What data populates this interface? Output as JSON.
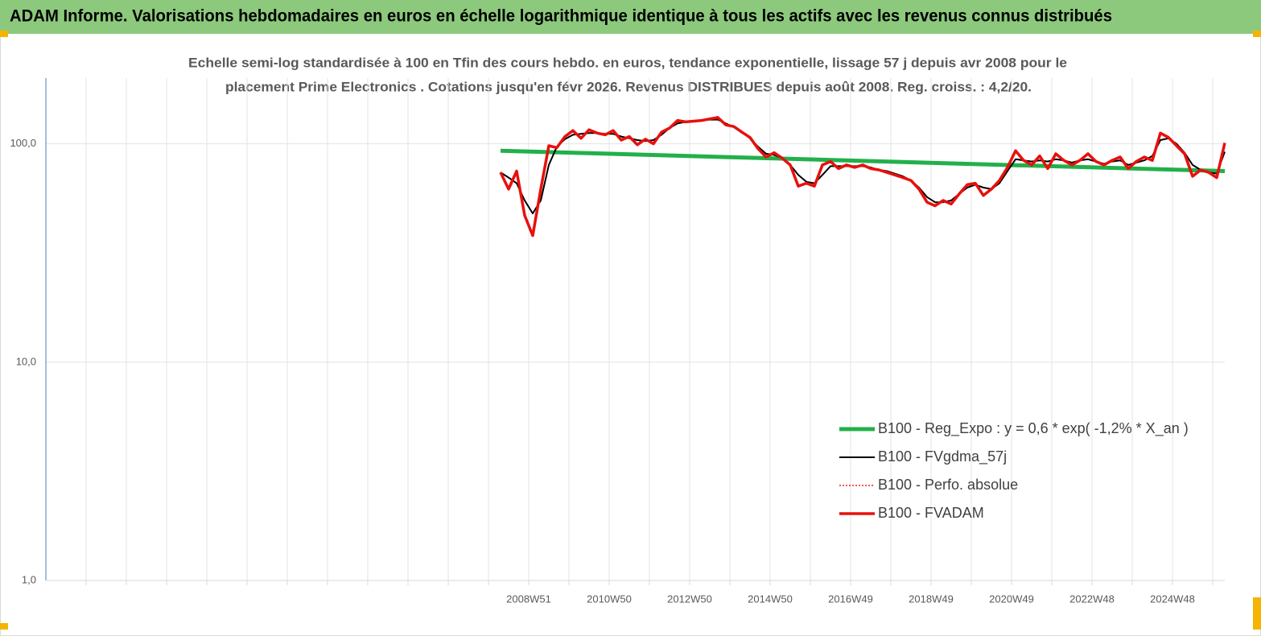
{
  "chart_data": {
    "type": "line",
    "title": "ADAM Informe. Valorisations hebdomadaires en euros en échelle logarithmique identique à tous les actifs avec les revenus connus distribués",
    "subtitle": [
      "Echelle semi-log standardisée à 100 en Tfin des cours hebdo. en euros, tendance exponentielle, lissage 57 j depuis avr 2008 pour le",
      "placement Prime Electronics . Cotations jusqu'en févr 2026. Revenus DISTRIBUES depuis août 2008. Reg. croiss. : 4,2/20."
    ],
    "log_scale": true,
    "grid": true,
    "legend": "lower right",
    "xlim": [
      1996.97,
      2026.27
    ],
    "xticks": [
      {
        "value": 1997.97,
        "label": null
      },
      {
        "value": 1998.97,
        "label": null
      },
      {
        "value": 1999.97,
        "label": null
      },
      {
        "value": 2000.97,
        "label": null
      },
      {
        "value": 2001.97,
        "label": null
      },
      {
        "value": 2002.97,
        "label": null
      },
      {
        "value": 2003.97,
        "label": null
      },
      {
        "value": 2004.97,
        "label": null
      },
      {
        "value": 2005.97,
        "label": null
      },
      {
        "value": 2006.97,
        "label": null
      },
      {
        "value": 2007.97,
        "label": null
      },
      {
        "value": 2008.97,
        "label": "2008W51"
      },
      {
        "value": 2009.97,
        "label": null
      },
      {
        "value": 2010.97,
        "label": "2010W50"
      },
      {
        "value": 2011.97,
        "label": null
      },
      {
        "value": 2012.97,
        "label": "2012W50"
      },
      {
        "value": 2013.97,
        "label": null
      },
      {
        "value": 2014.97,
        "label": "2014W50"
      },
      {
        "value": 2015.97,
        "label": null
      },
      {
        "value": 2016.97,
        "label": "2016W49"
      },
      {
        "value": 2017.97,
        "label": null
      },
      {
        "value": 2018.97,
        "label": "2018W49"
      },
      {
        "value": 2019.97,
        "label": null
      },
      {
        "value": 2020.97,
        "label": "2020W49"
      },
      {
        "value": 2021.97,
        "label": null
      },
      {
        "value": 2022.97,
        "label": "2022W48"
      },
      {
        "value": 2023.97,
        "label": null
      },
      {
        "value": 2024.97,
        "label": "2024W48"
      },
      {
        "value": 2025.97,
        "label": null
      }
    ],
    "ylim": [
      1,
      200
    ],
    "yticks": [
      {
        "value": 1,
        "label": "1,0"
      },
      {
        "value": 10,
        "label": "10,0"
      },
      {
        "value": 100,
        "label": "100,0"
      }
    ],
    "x": [
      2008.27,
      2008.47,
      2008.67,
      2008.87,
      2009.07,
      2009.27,
      2009.47,
      2009.67,
      2009.87,
      2010.07,
      2010.27,
      2010.47,
      2010.67,
      2010.87,
      2011.07,
      2011.27,
      2011.47,
      2011.67,
      2011.87,
      2012.07,
      2012.27,
      2012.47,
      2012.67,
      2012.87,
      2013.07,
      2013.27,
      2013.47,
      2013.67,
      2013.87,
      2014.07,
      2014.27,
      2014.47,
      2014.67,
      2014.87,
      2015.07,
      2015.27,
      2015.47,
      2015.67,
      2015.87,
      2016.07,
      2016.27,
      2016.47,
      2016.67,
      2016.87,
      2017.07,
      2017.27,
      2017.47,
      2017.67,
      2017.87,
      2018.07,
      2018.27,
      2018.47,
      2018.67,
      2018.87,
      2019.07,
      2019.27,
      2019.47,
      2019.67,
      2019.87,
      2020.07,
      2020.27,
      2020.47,
      2020.67,
      2020.87,
      2021.07,
      2021.27,
      2021.47,
      2021.67,
      2021.87,
      2022.07,
      2022.27,
      2022.47,
      2022.67,
      2022.87,
      2023.07,
      2023.27,
      2023.47,
      2023.67,
      2023.87,
      2024.07,
      2024.27,
      2024.47,
      2024.67,
      2024.87,
      2025.07,
      2025.27,
      2025.47,
      2025.67,
      2025.87,
      2026.07,
      2026.27
    ],
    "series": [
      {
        "name": "B100 - Reg_Expo : y = 0,6 * exp( -1,2% *  X_an )",
        "color": "#22b04a",
        "width": 5,
        "dash": null,
        "x": [
          2008.27,
          2026.27
        ],
        "values": [
          93,
          75
        ]
      },
      {
        "name": "B100 - FVgdma_57j",
        "color": "#000000",
        "width": 2,
        "dash": null,
        "values": [
          74,
          70,
          66,
          55,
          48,
          55,
          80,
          97,
          105,
          110,
          111,
          112,
          112,
          111,
          111,
          108,
          106,
          104,
          103,
          104,
          110,
          118,
          124,
          126,
          127,
          128,
          129,
          129,
          124,
          119,
          113,
          106,
          97,
          90,
          89,
          86,
          80,
          72,
          67,
          66,
          72,
          79,
          79,
          79,
          79,
          79,
          78,
          76,
          75,
          73,
          71,
          68,
          63,
          57,
          54,
          54,
          55,
          59,
          63,
          65,
          63,
          62,
          66,
          75,
          85,
          84,
          83,
          84,
          83,
          85,
          84,
          82,
          84,
          85,
          83,
          81,
          83,
          84,
          80,
          82,
          84,
          88,
          104,
          106,
          100,
          91,
          80,
          76,
          74,
          73,
          92
        ]
      },
      {
        "name": "B100 - Perfo. absolue",
        "color": "#e8231f",
        "width": 1.5,
        "dash": "2 2",
        "values": [
          74,
          62,
          75,
          47,
          38,
          62,
          98,
          96,
          108,
          115,
          106,
          116,
          112,
          110,
          115,
          104,
          108,
          99,
          105,
          100,
          113,
          118,
          128,
          126,
          127,
          128,
          130,
          132,
          122,
          120,
          113,
          107,
          95,
          87,
          91,
          86,
          80,
          64,
          66,
          64,
          80,
          83,
          77,
          80,
          78,
          80,
          77,
          76,
          74,
          72,
          70,
          68,
          62,
          54,
          52,
          55,
          53,
          59,
          65,
          66,
          58,
          62,
          68,
          78,
          93,
          84,
          80,
          88,
          77,
          90,
          84,
          80,
          84,
          90,
          83,
          80,
          84,
          87,
          77,
          83,
          87,
          84,
          112,
          107,
          98,
          90,
          71,
          76,
          74,
          70,
          101
        ]
      },
      {
        "name": "B100 - FVADAM",
        "color": "#e8100c",
        "width": 3.5,
        "dash": null,
        "values": [
          74,
          62,
          75,
          47,
          38,
          62,
          98,
          96,
          108,
          115,
          106,
          116,
          112,
          110,
          115,
          104,
          108,
          99,
          105,
          100,
          113,
          118,
          128,
          126,
          127,
          128,
          130,
          132,
          122,
          120,
          113,
          107,
          95,
          87,
          91,
          86,
          80,
          64,
          66,
          64,
          80,
          83,
          77,
          80,
          78,
          80,
          77,
          76,
          74,
          72,
          70,
          68,
          62,
          54,
          52,
          55,
          53,
          59,
          65,
          66,
          58,
          62,
          68,
          78,
          93,
          84,
          80,
          88,
          77,
          90,
          84,
          80,
          84,
          90,
          83,
          80,
          84,
          87,
          77,
          83,
          87,
          84,
          112,
          107,
          98,
          90,
          71,
          76,
          74,
          70,
          101
        ]
      }
    ]
  }
}
